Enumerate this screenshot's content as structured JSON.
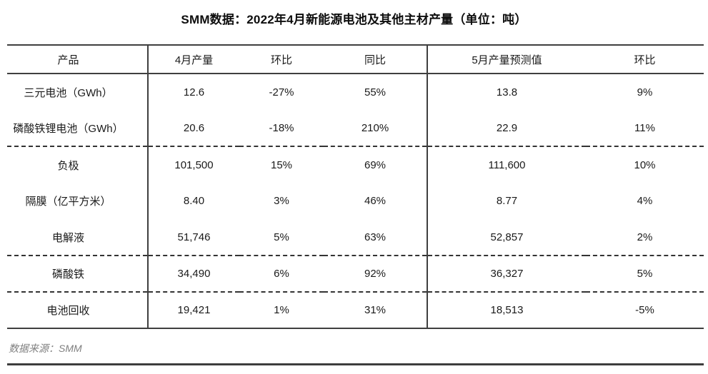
{
  "chart_data": {
    "type": "table",
    "title": "SMM数据：2022年4月新能源电池及其他主材产量（单位：吨）",
    "columns": [
      "产品",
      "4月产量",
      "环比",
      "同比",
      "5月产量预测值",
      "环比"
    ],
    "rows": [
      [
        "三元电池（GWh）",
        "12.6",
        "-27%",
        "55%",
        "13.8",
        "9%"
      ],
      [
        "磷酸铁锂电池（GWh）",
        "20.6",
        "-18%",
        "210%",
        "22.9",
        "11%"
      ],
      [
        "负极",
        "101,500",
        "15%",
        "69%",
        "111,600",
        "10%"
      ],
      [
        "隔膜（亿平方米）",
        "8.40",
        "3%",
        "46%",
        "8.77",
        "4%"
      ],
      [
        "电解液",
        "51,746",
        "5%",
        "63%",
        "52,857",
        "2%"
      ],
      [
        "磷酸铁",
        "34,490",
        "6%",
        "92%",
        "36,327",
        "5%"
      ],
      [
        "电池回收",
        "19,421",
        "1%",
        "31%",
        "18,513",
        "-5%"
      ]
    ],
    "dashed_separator_after_row_index": [
      1,
      4,
      5
    ],
    "source_note": "数据来源：SMM",
    "layout": {
      "grid": "horizontal rules solid, section separators dashed, two vertical dividers after column 1 and column 4"
    },
    "colors": {
      "rule": "#3f3f3f",
      "dashed_rule": "#333333",
      "text": "#1a1a1a",
      "muted_text": "#808080",
      "background": "#ffffff"
    }
  }
}
